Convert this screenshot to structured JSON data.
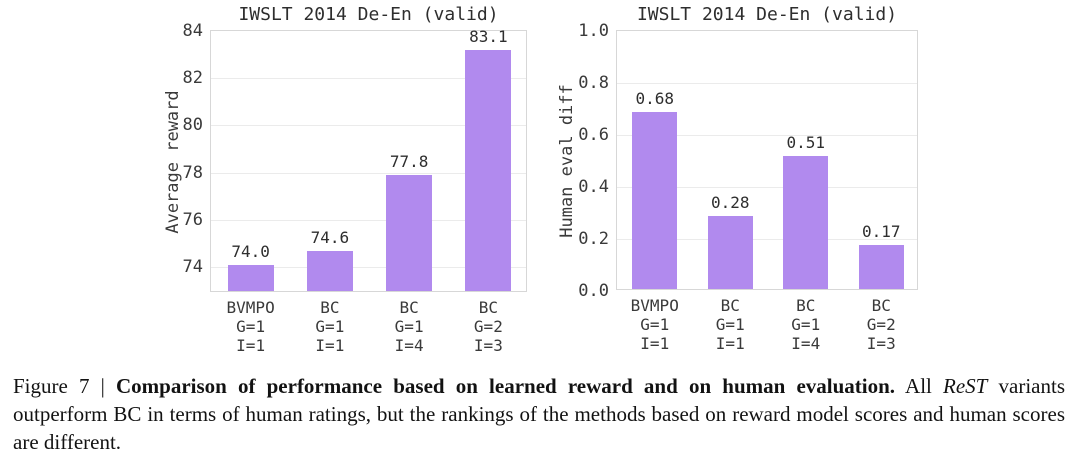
{
  "page": {
    "background": "#ffffff",
    "text_color": "#2e2e2e"
  },
  "chart_data": [
    {
      "type": "bar",
      "title": "IWSLT 2014 De-En (valid)",
      "xlabel": "",
      "ylabel": "Average reward",
      "categories": [
        [
          "BVMPO",
          "G=1",
          "I=1"
        ],
        [
          "BC",
          "G=1",
          "I=1"
        ],
        [
          "BC",
          "G=1",
          "I=4"
        ],
        [
          "BC",
          "G=2",
          "I=3"
        ]
      ],
      "values": [
        74.0,
        74.6,
        77.8,
        83.1
      ],
      "bar_labels": [
        "74.0",
        "74.6",
        "77.8",
        "83.1"
      ],
      "ytick_values": [
        74,
        76,
        78,
        80,
        82,
        84
      ],
      "ytick_labels": [
        "74",
        "76",
        "78",
        "80",
        "82",
        "84"
      ],
      "ylim": [
        72.9,
        84
      ],
      "grid": true,
      "legend": null,
      "bar_color": "#b18aee"
    },
    {
      "type": "bar",
      "title": "IWSLT 2014 De-En (valid)",
      "xlabel": "",
      "ylabel": "Human eval diff",
      "categories": [
        [
          "BVMPO",
          "G=1",
          "I=1"
        ],
        [
          "BC",
          "G=1",
          "I=1"
        ],
        [
          "BC",
          "G=1",
          "I=4"
        ],
        [
          "BC",
          "G=2",
          "I=3"
        ]
      ],
      "values": [
        0.68,
        0.28,
        0.51,
        0.17
      ],
      "bar_labels": [
        "0.68",
        "0.28",
        "0.51",
        "0.17"
      ],
      "ytick_values": [
        0.0,
        0.2,
        0.4,
        0.6,
        0.8,
        1.0
      ],
      "ytick_labels": [
        "0.0",
        "0.2",
        "0.4",
        "0.6",
        "0.8",
        "1.0"
      ],
      "ylim": [
        0.0,
        1.0
      ],
      "grid": true,
      "legend": null,
      "bar_color": "#b18aee"
    }
  ],
  "caption": {
    "prefix": "Figure 7 | ",
    "bold": "Comparison of performance based on learned reward and on human evaluation.",
    "after_bold": " All ",
    "italic": "ReST",
    "suffix": " variants outperform BC in terms of human ratings, but the rankings of the methods based on reward model scores and human scores are different."
  }
}
